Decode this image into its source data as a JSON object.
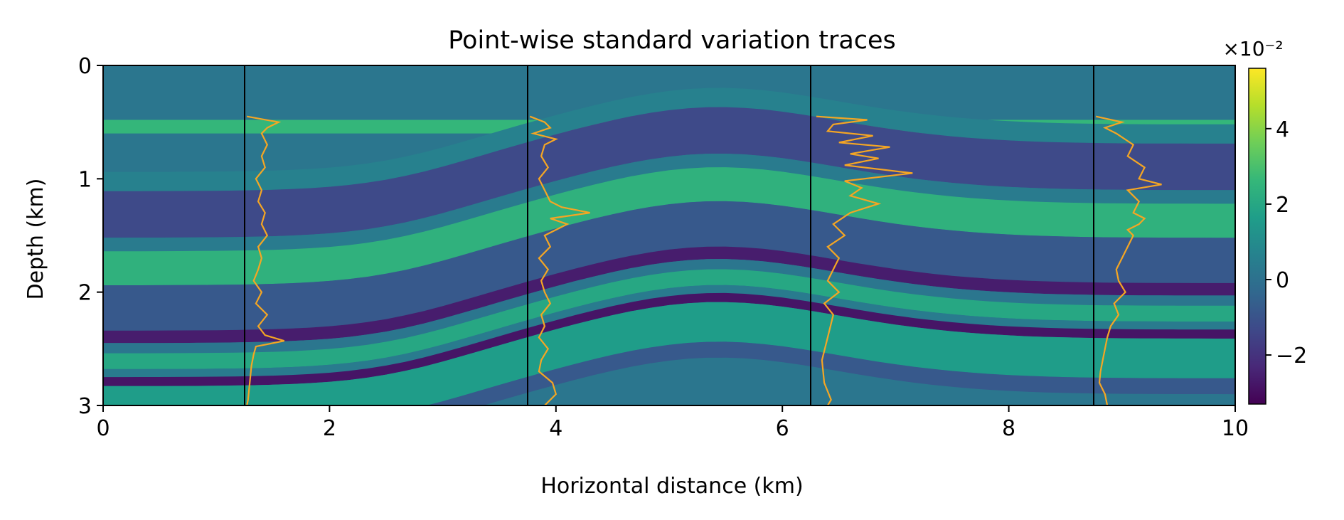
{
  "chart_data": {
    "type": "heatmap",
    "title": "Point-wise standard variation traces",
    "xlabel": "Horizontal distance (km)",
    "ylabel": "Depth (km)",
    "xlim": [
      0,
      10
    ],
    "ylim": [
      3,
      0
    ],
    "x_ticks": [
      0,
      2,
      4,
      6,
      8,
      10
    ],
    "x_tick_labels": [
      "0",
      "2",
      "4",
      "6",
      "8",
      "10"
    ],
    "y_ticks": [
      0,
      1,
      2,
      3
    ],
    "y_tick_labels": [
      "0",
      "1",
      "2",
      "3"
    ],
    "colormap": "viridis",
    "colorbar": {
      "range": [
        -3.3,
        5.6
      ],
      "ticks": [
        -2,
        0,
        2,
        4
      ],
      "tick_labels": [
        "−2",
        "0",
        "2",
        "4"
      ],
      "exponent_label": "×10⁻²",
      "position": "right"
    },
    "background_value": 0.2,
    "layers": [
      {
        "depth": 0.48,
        "thickness": 0.12,
        "value": 2.6
      },
      {
        "depth": 0.62,
        "thickness": 0.17,
        "value": 0.6
      },
      {
        "depth": 0.79,
        "thickness": 0.41,
        "value": -1.3
      },
      {
        "depth": 1.2,
        "thickness": 0.12,
        "value": 0.4
      },
      {
        "depth": 1.32,
        "thickness": 0.3,
        "value": 2.4
      },
      {
        "depth": 1.62,
        "thickness": 0.4,
        "value": -0.8
      },
      {
        "depth": 2.02,
        "thickness": 0.11,
        "value": -2.6
      },
      {
        "depth": 2.13,
        "thickness": 0.09,
        "value": 0.2
      },
      {
        "depth": 2.22,
        "thickness": 0.14,
        "value": 2.0
      },
      {
        "depth": 2.36,
        "thickness": 0.07,
        "value": 0.4
      },
      {
        "depth": 2.43,
        "thickness": 0.08,
        "value": -2.8
      },
      {
        "depth": 2.51,
        "thickness": 0.35,
        "value": 1.6
      },
      {
        "depth": 2.86,
        "thickness": 0.14,
        "value": -0.8
      }
    ],
    "trace_positions": [
      1.25,
      3.75,
      6.25,
      8.75
    ],
    "traces": [
      {
        "x": 1.25,
        "depth": [
          0.45,
          0.5,
          0.55,
          0.6,
          0.7,
          0.8,
          0.9,
          1.0,
          1.1,
          1.2,
          1.3,
          1.4,
          1.5,
          1.6,
          1.7,
          1.8,
          1.9,
          2.0,
          2.1,
          2.2,
          2.3,
          2.38,
          2.43,
          2.48,
          2.55,
          2.65,
          2.75,
          2.85,
          2.95,
          3.0
        ],
        "offset": [
          0.02,
          0.3,
          0.2,
          0.15,
          0.2,
          0.15,
          0.18,
          0.1,
          0.15,
          0.12,
          0.18,
          0.15,
          0.2,
          0.12,
          0.15,
          0.12,
          0.08,
          0.15,
          0.1,
          0.2,
          0.12,
          0.18,
          0.35,
          0.1,
          0.08,
          0.06,
          0.05,
          0.04,
          0.03,
          0.02
        ]
      },
      {
        "x": 3.75,
        "depth": [
          0.45,
          0.5,
          0.55,
          0.6,
          0.65,
          0.7,
          0.8,
          0.9,
          1.0,
          1.1,
          1.2,
          1.25,
          1.3,
          1.35,
          1.4,
          1.5,
          1.6,
          1.7,
          1.8,
          1.9,
          2.0,
          2.1,
          2.2,
          2.3,
          2.4,
          2.5,
          2.6,
          2.7,
          2.8,
          2.9,
          3.0
        ],
        "offset": [
          0.02,
          0.15,
          0.2,
          0.05,
          0.25,
          0.15,
          0.12,
          0.18,
          0.1,
          0.15,
          0.2,
          0.3,
          0.55,
          0.2,
          0.35,
          0.15,
          0.2,
          0.1,
          0.18,
          0.12,
          0.15,
          0.2,
          0.12,
          0.15,
          0.1,
          0.18,
          0.12,
          0.1,
          0.22,
          0.25,
          0.15
        ]
      },
      {
        "x": 6.25,
        "depth": [
          0.45,
          0.48,
          0.52,
          0.58,
          0.62,
          0.68,
          0.72,
          0.78,
          0.82,
          0.88,
          0.95,
          1.02,
          1.08,
          1.15,
          1.22,
          1.3,
          1.4,
          1.5,
          1.6,
          1.7,
          1.8,
          1.9,
          2.0,
          2.1,
          2.2,
          2.4,
          2.6,
          2.8,
          2.95,
          3.0
        ],
        "offset": [
          0.05,
          0.5,
          0.2,
          0.15,
          0.55,
          0.25,
          0.7,
          0.35,
          0.6,
          0.3,
          0.9,
          0.3,
          0.45,
          0.35,
          0.6,
          0.35,
          0.2,
          0.3,
          0.15,
          0.25,
          0.2,
          0.15,
          0.25,
          0.12,
          0.2,
          0.15,
          0.1,
          0.12,
          0.18,
          0.15
        ]
      },
      {
        "x": 8.75,
        "depth": [
          0.45,
          0.5,
          0.55,
          0.6,
          0.7,
          0.8,
          0.9,
          1.0,
          1.05,
          1.1,
          1.2,
          1.3,
          1.35,
          1.4,
          1.45,
          1.5,
          1.6,
          1.7,
          1.8,
          1.9,
          2.0,
          2.1,
          2.2,
          2.3,
          2.4,
          2.5,
          2.6,
          2.7,
          2.8,
          2.9,
          3.0
        ],
        "offset": [
          0.02,
          0.25,
          0.1,
          0.2,
          0.35,
          0.3,
          0.45,
          0.4,
          0.6,
          0.3,
          0.4,
          0.35,
          0.45,
          0.4,
          0.3,
          0.35,
          0.3,
          0.25,
          0.2,
          0.22,
          0.28,
          0.18,
          0.22,
          0.15,
          0.12,
          0.1,
          0.08,
          0.06,
          0.05,
          0.1,
          0.12
        ]
      }
    ]
  },
  "colors": {
    "trace": "#f5a623",
    "trace_axis": "#000000",
    "frame": "#000000"
  }
}
